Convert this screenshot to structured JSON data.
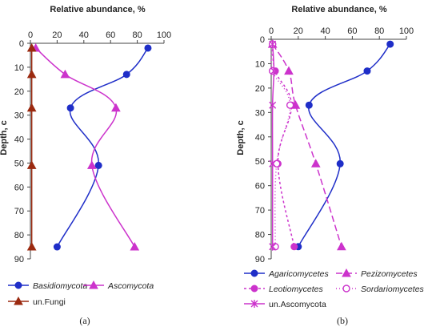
{
  "colors": {
    "blue": "#1f2ec8",
    "magenta": "#cc33cc",
    "brown": "#9b2a10",
    "axis": "#444444"
  },
  "chart_data": [
    {
      "type": "line",
      "panel_label": "(a)",
      "title": "Relative abundance, %",
      "ylabel": "Depth, c",
      "xlim": [
        0,
        100
      ],
      "ylim": [
        0,
        90
      ],
      "x_ticks": [
        "0",
        "20",
        "40",
        "60",
        "80",
        "100"
      ],
      "y_ticks": [
        "0",
        "10",
        "20",
        "30",
        "40",
        "50",
        "60",
        "70",
        "80",
        "90"
      ],
      "legend_position": "bottom",
      "series": [
        {
          "name": "Basidiomycota",
          "color": "#1f2ec8",
          "marker": "circle",
          "dash": "solid",
          "x": [
            88,
            72,
            30,
            51,
            20
          ],
          "y": [
            2,
            13,
            27,
            51,
            85
          ]
        },
        {
          "name": "Ascomycota",
          "color": "#cc33cc",
          "marker": "triangle",
          "dash": "solid",
          "x": [
            4,
            26,
            64,
            46,
            78
          ],
          "y": [
            2,
            13,
            27,
            51,
            85
          ]
        },
        {
          "name": "un.Fungi",
          "color": "#9b2a10",
          "marker": "triangle",
          "dash": "solid",
          "x": [
            1,
            1,
            1,
            1,
            1
          ],
          "y": [
            2,
            13,
            27,
            51,
            85
          ]
        }
      ]
    },
    {
      "type": "line",
      "panel_label": "(b)",
      "title": "Relative abundance, %",
      "ylabel": "Depth, c",
      "xlim": [
        0,
        100
      ],
      "ylim": [
        0,
        90
      ],
      "x_ticks": [
        "0",
        "20",
        "40",
        "60",
        "80",
        "100"
      ],
      "y_ticks": [
        "0",
        "10",
        "20",
        "30",
        "40",
        "50",
        "60",
        "70",
        "80",
        "90"
      ],
      "legend_position": "bottom",
      "series": [
        {
          "name": "Agaricomycetes",
          "color": "#1f2ec8",
          "marker": "circle",
          "dash": "solid",
          "x": [
            88,
            71,
            28,
            51,
            20
          ],
          "y": [
            2,
            13,
            27,
            51,
            85
          ]
        },
        {
          "name": "Pezizomycetes",
          "color": "#cc33cc",
          "marker": "triangle",
          "dash": "8,4",
          "x": [
            1,
            13,
            18,
            33,
            52
          ],
          "y": [
            2,
            13,
            27,
            51,
            85
          ]
        },
        {
          "name": "Leotiomycetes",
          "color": "#cc33cc",
          "marker": "circle",
          "dash": "3,3",
          "x": [
            1,
            3,
            15,
            5,
            17
          ],
          "y": [
            2,
            13,
            27,
            51,
            85
          ]
        },
        {
          "name": "Sordariomycetes",
          "color": "#cc33cc",
          "marker": "open-circle",
          "dash": "1,3",
          "x": [
            1,
            1,
            14,
            4,
            3
          ],
          "y": [
            2,
            13,
            27,
            51,
            85
          ]
        },
        {
          "name": "un.Ascomycota",
          "color": "#cc33cc",
          "marker": "star",
          "dash": "solid",
          "x": [
            1,
            2,
            1,
            1,
            1
          ],
          "y": [
            2,
            13,
            27,
            51,
            85
          ]
        }
      ]
    }
  ]
}
